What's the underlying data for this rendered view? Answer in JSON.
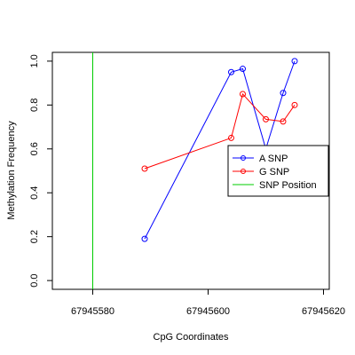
{
  "chart_data": {
    "type": "line",
    "title": "",
    "xlabel": "CpG Coordinates",
    "ylabel": "Methylation Frequency",
    "xlim": [
      67945573,
      67945621
    ],
    "ylim": [
      -0.04,
      1.04
    ],
    "x_ticks": [
      67945580,
      67945600,
      67945620
    ],
    "y_ticks": [
      0.0,
      0.2,
      0.4,
      0.6,
      0.8,
      1.0
    ],
    "x_tick_labels": [
      "67945580",
      "67945600",
      "67945620"
    ],
    "y_tick_labels": [
      "0.0",
      "0.2",
      "0.4",
      "0.6",
      "0.8",
      "1.0"
    ],
    "grid": false,
    "legend_position": "right",
    "series": [
      {
        "name": "A SNP",
        "color": "#0000ff",
        "x": [
          67945589,
          67945604,
          67945606,
          67945610,
          67945613,
          67945615
        ],
        "y": [
          0.19,
          0.95,
          0.965,
          0.6,
          0.855,
          1.0
        ]
      },
      {
        "name": "G SNP",
        "color": "#ff0000",
        "x": [
          67945589,
          67945604,
          67945606,
          67945610,
          67945613,
          67945615
        ],
        "y": [
          0.51,
          0.65,
          0.85,
          0.735,
          0.725,
          0.8
        ]
      }
    ],
    "vertical_line": {
      "name": "SNP Position",
      "color": "#00cc00",
      "x": 67945580
    }
  }
}
